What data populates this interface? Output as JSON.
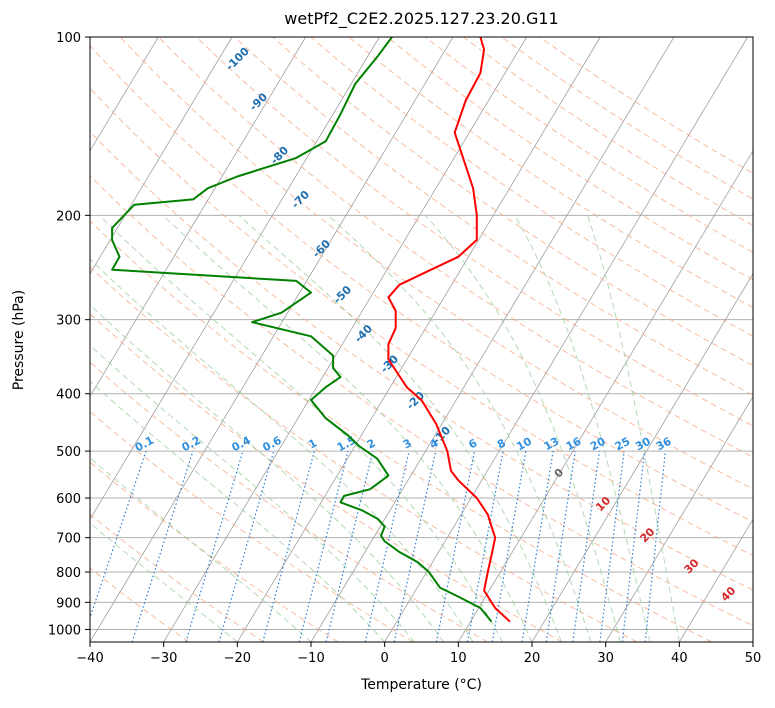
{
  "chart_data": {
    "type": "line",
    "title": "wetPf2_C2E2.2025.127.23.20.G11",
    "xlabel": "Temperature (°C)",
    "ylabel": "Pressure (hPa)",
    "xlim": [
      -40,
      50
    ],
    "ylim": [
      1050,
      100
    ],
    "y_scale": "log",
    "x_ticks": [
      -40,
      -30,
      -20,
      -10,
      0,
      10,
      20,
      30,
      40,
      50
    ],
    "y_ticks": [
      100,
      200,
      300,
      400,
      500,
      600,
      700,
      800,
      900,
      1000
    ],
    "grid": true,
    "series": [
      {
        "role": "temperature",
        "color": "#ff0000",
        "points": [
          [
            17,
            970
          ],
          [
            15,
            920
          ],
          [
            13.5,
            860
          ],
          [
            14,
            800
          ],
          [
            14.5,
            750
          ],
          [
            15,
            700
          ],
          [
            14.5,
            670
          ],
          [
            14,
            640
          ],
          [
            12.5,
            600
          ],
          [
            10,
            560
          ],
          [
            9,
            540
          ],
          [
            8.5,
            500
          ],
          [
            7,
            450
          ],
          [
            5,
            410
          ],
          [
            3,
            390
          ],
          [
            0.5,
            350
          ],
          [
            0.5,
            330
          ],
          [
            1.5,
            310
          ],
          [
            1.5,
            290
          ],
          [
            0.5,
            275
          ],
          [
            2,
            262
          ],
          [
            6,
            248
          ],
          [
            10,
            235
          ],
          [
            12.5,
            220
          ],
          [
            12.5,
            200
          ],
          [
            12,
            180
          ],
          [
            10.5,
            158
          ],
          [
            9.5,
            145
          ],
          [
            11,
            128
          ],
          [
            13,
            115
          ],
          [
            13.5,
            105
          ],
          [
            13,
            100
          ]
        ]
      },
      {
        "role": "dewpoint",
        "color": "#008000",
        "points": [
          [
            14.5,
            970
          ],
          [
            13,
            920
          ],
          [
            10,
            880
          ],
          [
            7.5,
            850
          ],
          [
            6,
            800
          ],
          [
            4.5,
            770
          ],
          [
            2,
            740
          ],
          [
            0,
            710
          ],
          [
            -0.5,
            695
          ],
          [
            0,
            670
          ],
          [
            -1,
            650
          ],
          [
            -3,
            630
          ],
          [
            -6,
            610
          ],
          [
            -5.5,
            595
          ],
          [
            -2,
            580
          ],
          [
            0.5,
            550
          ],
          [
            -1,
            515
          ],
          [
            -3.5,
            490
          ],
          [
            -5,
            470
          ],
          [
            -8,
            440
          ],
          [
            -10,
            410
          ],
          [
            -8,
            390
          ],
          [
            -6,
            375
          ],
          [
            -7,
            362
          ],
          [
            -7,
            345
          ],
          [
            -10,
            320
          ],
          [
            -18,
            303
          ],
          [
            -14,
            292
          ],
          [
            -10,
            270
          ],
          [
            -12,
            258
          ],
          [
            -37,
            247
          ],
          [
            -36,
            235
          ],
          [
            -37,
            220
          ],
          [
            -37,
            210
          ],
          [
            -34,
            192
          ],
          [
            -26,
            188
          ],
          [
            -24,
            180
          ],
          [
            -20,
            172
          ],
          [
            -12,
            160
          ],
          [
            -8,
            150
          ],
          [
            -6,
            135
          ],
          [
            -4,
            120
          ],
          [
            -1,
            108
          ],
          [
            1,
            100
          ]
        ]
      }
    ],
    "dry_adiabat_labels": [
      "-100",
      "-90",
      "-80",
      "-70",
      "-60",
      "-50",
      "-40",
      "-30",
      "-20",
      "-10"
    ],
    "moist_adiabat_labels": [
      "0",
      "10",
      "20",
      "30",
      "40"
    ],
    "mixing_ratio_labels": [
      "0.1",
      "0.2",
      "0.4",
      "0.6",
      "1",
      "1.5",
      "2",
      "3",
      "4",
      "6",
      "8",
      "10",
      "13",
      "16",
      "20",
      "25",
      "30",
      "36"
    ]
  },
  "colors": {
    "temperature": "#ff0000",
    "dewpoint": "#008000",
    "isobar_grid": "#b0b0b0",
    "isotherm": "#a0a0a0",
    "dry_adiabat": "#f4a582",
    "moist_adiabat": "#9fcf9f",
    "mixing_ratio": "#2a7fd4",
    "dry_label": "#1f6fb0",
    "moist_label": "#d62728",
    "mixing_label": "#3090e0"
  }
}
